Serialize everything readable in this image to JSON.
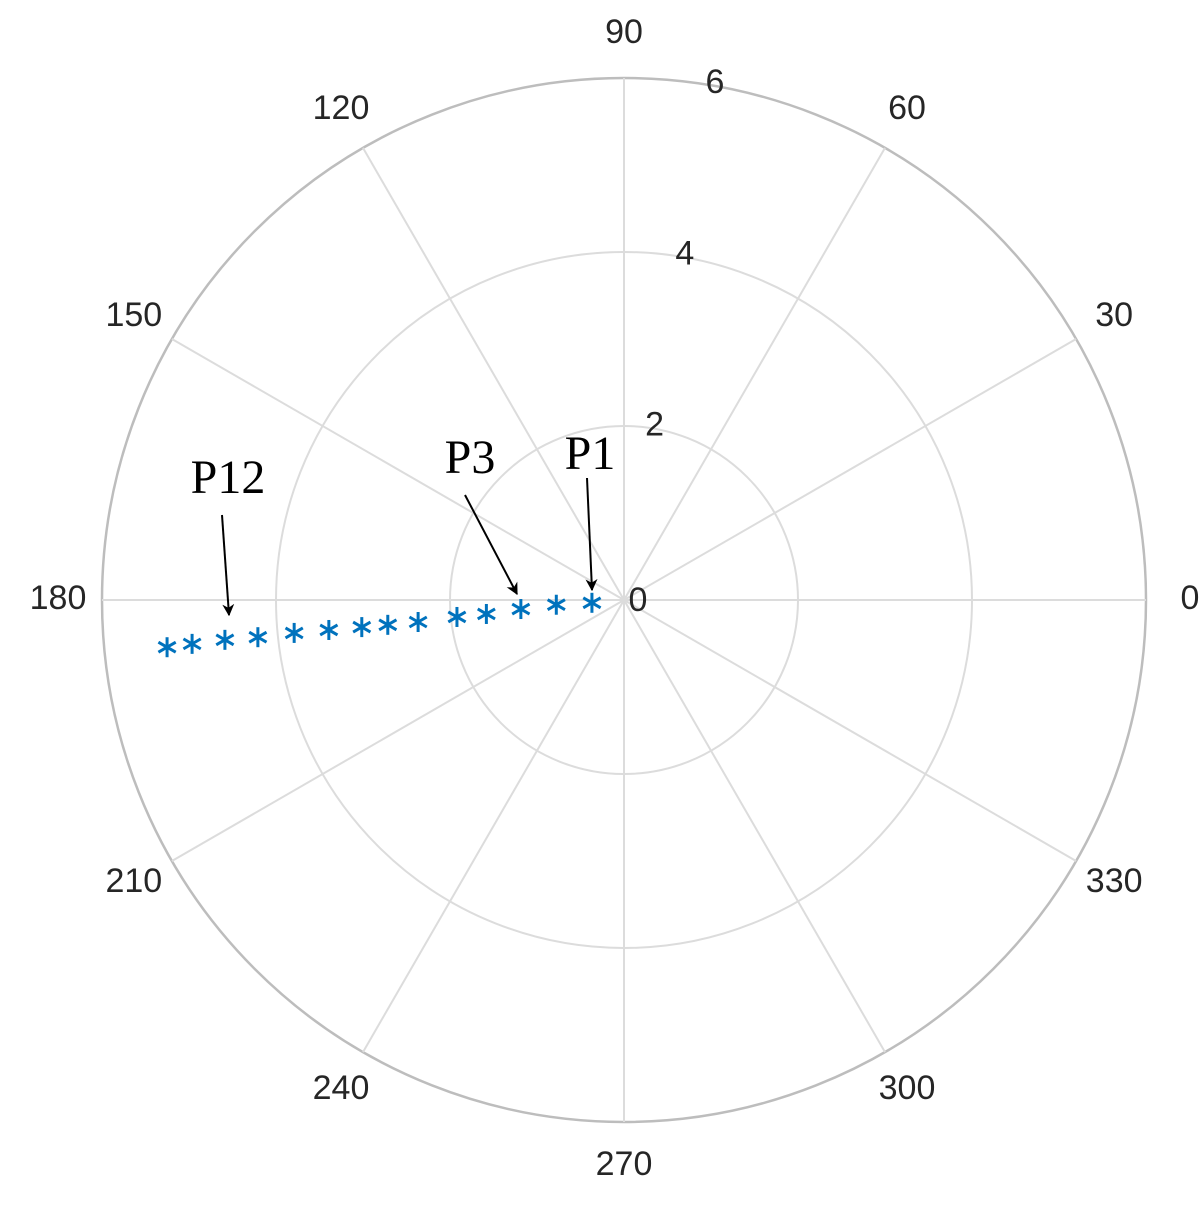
{
  "chart_data": {
    "type": "polar-scatter",
    "theta": [
      185,
      184,
      185,
      185.8,
      185.8,
      186.1,
      186,
      185.9,
      185.8,
      185.7,
      185.8,
      185.7,
      185.8,
      185.9
    ],
    "r": [
      0.37,
      0.78,
      1.19,
      1.59,
      1.93,
      2.38,
      2.73,
      3.03,
      3.41,
      3.81,
      4.23,
      4.61,
      4.99,
      5.28
    ],
    "color": "#0072bd",
    "marker": "asterisk",
    "rlim": [
      0,
      6
    ],
    "rticks": [
      0,
      2,
      4,
      6
    ],
    "thetaticks": [
      0,
      30,
      60,
      90,
      120,
      150,
      180,
      210,
      240,
      270,
      300,
      330
    ],
    "grid": true,
    "annotations": [
      "P1",
      "P3",
      "P12"
    ]
  }
}
